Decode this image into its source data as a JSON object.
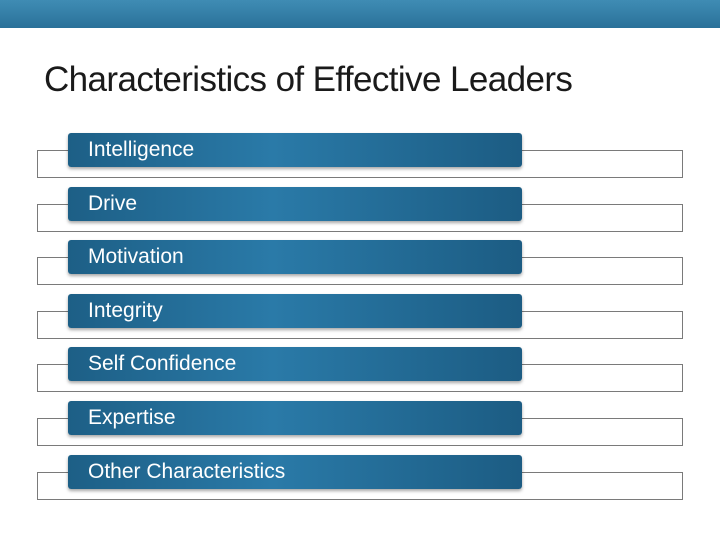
{
  "slide": {
    "title": "Characteristics of Effective Leaders",
    "accent_color": "#2a7aa8",
    "items": [
      {
        "label": "Intelligence"
      },
      {
        "label": "Drive"
      },
      {
        "label": "Motivation"
      },
      {
        "label": "Integrity"
      },
      {
        "label": "Self Confidence"
      },
      {
        "label": "Expertise"
      },
      {
        "label": "Other Characteristics"
      }
    ]
  }
}
